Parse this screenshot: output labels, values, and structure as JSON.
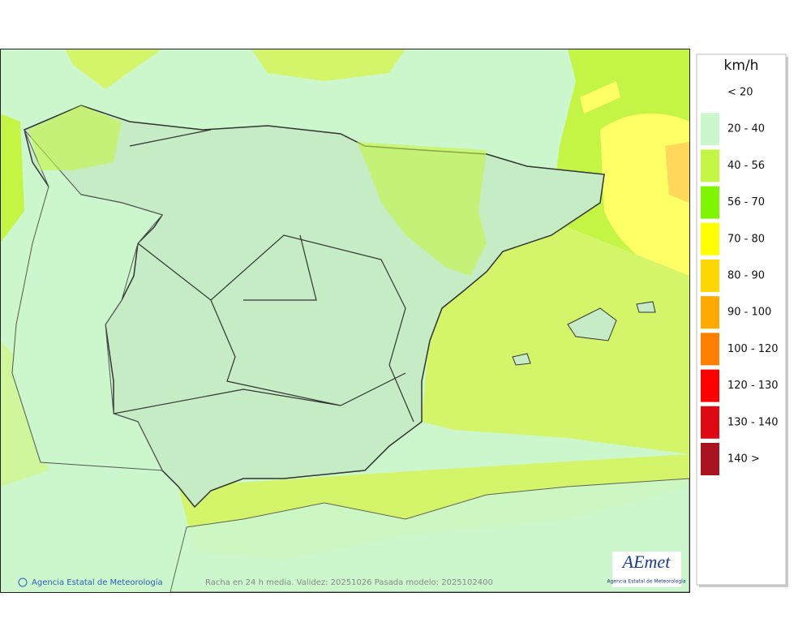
{
  "legend": {
    "unit": "km/h",
    "items": [
      {
        "label": "< 20",
        "color": "#ffffff"
      },
      {
        "label": "20 - 40",
        "color": "#ccf7cc"
      },
      {
        "label": "40 - 56",
        "color": "#c4f545"
      },
      {
        "label": "56 - 70",
        "color": "#80f500"
      },
      {
        "label": "70 - 80",
        "color": "#ffff00"
      },
      {
        "label": "80 - 90",
        "color": "#ffd700"
      },
      {
        "label": "90 - 100",
        "color": "#ffaa00"
      },
      {
        "label": "100 - 120",
        "color": "#ff8000"
      },
      {
        "label": "120 - 130",
        "color": "#ff0000"
      },
      {
        "label": "130 - 140",
        "color": "#dd0a14"
      },
      {
        "label": "140 >",
        "color": "#aa1420"
      }
    ]
  },
  "footer": {
    "copyright": "Agencia Estatal de Meteorología",
    "caption": "Racha en 24 h media. Validez: 20251026 Pasada modelo: 2025102400"
  },
  "logo": {
    "name": "AEmet",
    "subtitle": "Agencia Estatal de Meteorología"
  }
}
